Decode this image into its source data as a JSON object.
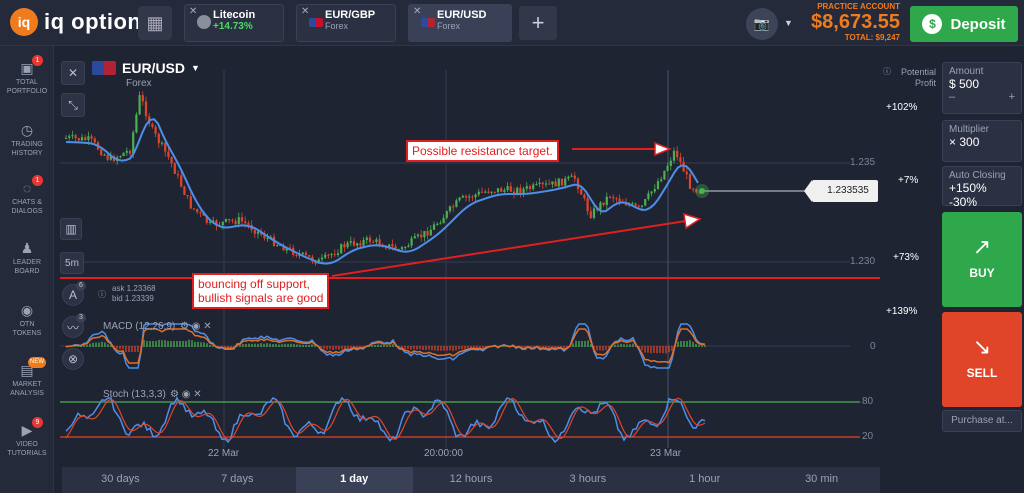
{
  "brand": {
    "logo_mark": "iq",
    "logo_text": "iq option"
  },
  "tabs": [
    {
      "name": "Litecoin",
      "sub": "+14.73%"
    },
    {
      "name": "EUR/GBP",
      "sub": "Forex"
    },
    {
      "name": "EUR/USD",
      "sub": "Forex"
    }
  ],
  "tab_close": "✕",
  "add_tab": "+",
  "account": {
    "label": "PRACTICE ACCOUNT",
    "balance": "$8,673.55",
    "total": "TOTAL: $9,247"
  },
  "deposit_label": "Deposit",
  "nav": [
    {
      "icon": "portfolio-icon",
      "label1": "TOTAL",
      "label2": "PORTFOLIO",
      "badge": "1"
    },
    {
      "icon": "history-icon",
      "label1": "TRADING",
      "label2": "HISTORY",
      "badge": ""
    },
    {
      "icon": "chat-icon",
      "label1": "CHATS &",
      "label2": "DIALOGS",
      "badge": "1"
    },
    {
      "icon": "leaderboard-icon",
      "label1": "LEADER",
      "label2": "BOARD",
      "badge": ""
    },
    {
      "icon": "otn-icon",
      "label1": "OTN",
      "label2": "TOKENS",
      "badge": ""
    },
    {
      "icon": "market-icon",
      "label1": "MARKET",
      "label2": "ANALYSIS",
      "badge": "NEW"
    },
    {
      "icon": "video-icon",
      "label1": "VIDEO",
      "label2": "TUTORIALS",
      "badge": "9"
    }
  ],
  "chart": {
    "pair": "EUR/USD",
    "market": "Forex",
    "potential_label": "Potential",
    "profit_label": "Profit",
    "timeframe": "5m",
    "indicator_count": "6",
    "drawing_count": "3",
    "ask": "ask 1.23368",
    "bid": "bid 1.23339",
    "current_price": "1.233535",
    "price_levels": [
      "1.235",
      "1.230"
    ],
    "profit_levels": [
      "+102%",
      "+7%",
      "+73%",
      "+139%"
    ],
    "macd_label": "MACD (12,26,9)",
    "macd_zero": "0",
    "stoch_label": "Stoch (13,3,3)",
    "stoch_levels": [
      "80",
      "20"
    ],
    "x_labels": [
      "22 Mar",
      "20:00:00",
      "23 Mar"
    ],
    "annotation_resistance": "Possible resistance target.",
    "annotation_support_1": "bouncing off support,",
    "annotation_support_2": "bullish signals are good",
    "colors": {
      "bull": "#4caf50",
      "bear": "#e0452a",
      "ma": "#4d8fe8",
      "macd": "#4d8fe8",
      "signal": "#e0702a",
      "stoch_k": "#4d8fe8",
      "stoch_d": "#e0452a",
      "support": "#e02020"
    }
  },
  "time_ranges": [
    "30 days",
    "7 days",
    "1 day",
    "12 hours",
    "3 hours",
    "1 hour",
    "30 min"
  ],
  "active_range": "1 day",
  "right_panel": {
    "amount_label": "Amount",
    "amount_value": "$ 500",
    "minus": "–",
    "plus": "+",
    "multiplier_label": "Multiplier",
    "multiplier_value": "× 300",
    "autoclose_label": "Auto Closing",
    "autoclose_value": "+150% -30%",
    "buy_label": "BUY",
    "sell_label": "SELL",
    "purchase_label": "Purchase at..."
  }
}
